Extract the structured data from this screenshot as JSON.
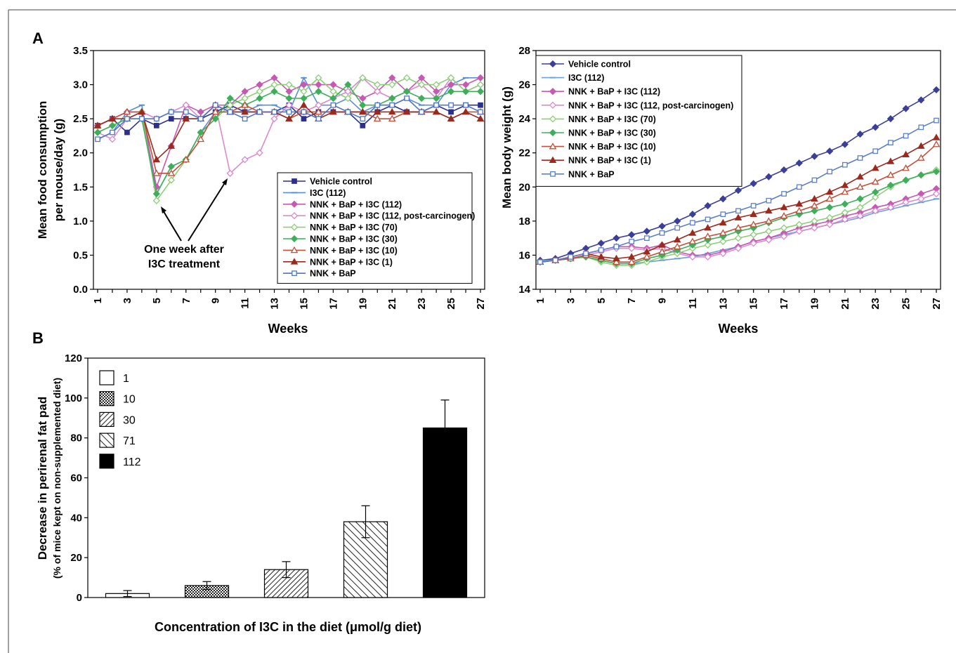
{
  "panel_labels": {
    "a": "A",
    "b": "B"
  },
  "chart_data": [
    {
      "type": "line",
      "panel": "A",
      "ylabel_line1": "Mean food consumption",
      "ylabel_line2": "per mouse/day (g)",
      "xlabel": "Weeks",
      "ylim": [
        0,
        3.5
      ],
      "yticks": [
        "0.0",
        "0.5",
        "1.0",
        "1.5",
        "2.0",
        "2.5",
        "3.0",
        "3.5"
      ],
      "xlim": [
        1,
        27
      ],
      "xticks": [
        "1",
        "3",
        "5",
        "7",
        "9",
        "11",
        "13",
        "15",
        "17",
        "19",
        "21",
        "23",
        "25",
        "27"
      ],
      "annotation_line1": "One week after",
      "annotation_line2": "I3C treatment",
      "legend_position": "bottom-right",
      "x": [
        1,
        2,
        3,
        4,
        5,
        6,
        7,
        8,
        9,
        10,
        11,
        12,
        13,
        14,
        15,
        16,
        17,
        18,
        19,
        20,
        21,
        22,
        23,
        24,
        25,
        26,
        27
      ],
      "series": [
        {
          "name": "Vehicle control",
          "color": "#2b2f8f",
          "marker": "square",
          "filled": true,
          "values": [
            2.4,
            2.5,
            2.3,
            2.5,
            2.4,
            2.5,
            2.5,
            2.5,
            2.6,
            2.7,
            2.6,
            2.6,
            2.6,
            2.7,
            2.5,
            2.6,
            2.6,
            2.6,
            2.4,
            2.6,
            2.7,
            2.6,
            2.6,
            2.7,
            2.6,
            2.7,
            2.7
          ]
        },
        {
          "name": "I3C (112)",
          "color": "#5a8fd6",
          "marker": "dash",
          "filled": true,
          "values": [
            2.2,
            2.3,
            2.6,
            2.7,
            1.4,
            1.8,
            1.9,
            2.3,
            2.6,
            2.6,
            2.6,
            2.7,
            2.7,
            2.6,
            3.1,
            2.7,
            2.7,
            2.8,
            2.6,
            2.7,
            2.7,
            2.8,
            2.7,
            2.7,
            3.0,
            3.1,
            3.1
          ]
        },
        {
          "name": "NNK + BaP + I3C (112)",
          "color": "#c65ab0",
          "marker": "diamond",
          "filled": true,
          "values": [
            2.4,
            2.5,
            2.6,
            2.6,
            1.5,
            2.1,
            2.7,
            2.6,
            2.7,
            2.7,
            2.9,
            3.0,
            3.1,
            2.9,
            3.0,
            3.0,
            3.0,
            2.9,
            2.8,
            2.9,
            3.1,
            2.9,
            3.1,
            2.9,
            3.0,
            3.0,
            3.1
          ]
        },
        {
          "name": "NNK + BaP + I3C (112, post-carcinogen)",
          "color": "#d98ad0",
          "marker": "diamond",
          "filled": false,
          "values": [
            2.3,
            2.2,
            2.5,
            2.6,
            2.5,
            2.6,
            2.7,
            2.5,
            2.7,
            1.7,
            1.9,
            2.0,
            2.5,
            2.7,
            2.6,
            2.7,
            2.8,
            2.9,
            3.1,
            2.9,
            2.8,
            2.9,
            3.0,
            2.8,
            3.1,
            2.9,
            3.0
          ]
        },
        {
          "name": "NNK + BaP + I3C (70)",
          "color": "#8ccf77",
          "marker": "diamond",
          "filled": false,
          "values": [
            2.3,
            2.4,
            2.5,
            2.6,
            1.3,
            1.6,
            1.9,
            2.3,
            2.5,
            2.7,
            2.8,
            2.9,
            3.0,
            3.0,
            2.9,
            3.1,
            2.9,
            2.8,
            3.1,
            3.0,
            3.0,
            3.1,
            3.0,
            3.0,
            3.1,
            2.9,
            3.0
          ]
        },
        {
          "name": "NNK + BaP + I3C (30)",
          "color": "#3fae5a",
          "marker": "diamond",
          "filled": true,
          "values": [
            2.3,
            2.4,
            2.5,
            2.5,
            1.4,
            1.8,
            1.9,
            2.3,
            2.5,
            2.8,
            2.7,
            2.8,
            2.9,
            2.8,
            2.8,
            2.9,
            2.8,
            3.0,
            2.7,
            2.7,
            2.8,
            2.9,
            2.8,
            2.8,
            2.9,
            2.9,
            2.9
          ]
        },
        {
          "name": "NNK + BaP + I3C (10)",
          "color": "#c0503a",
          "marker": "triangle",
          "filled": false,
          "values": [
            2.4,
            2.5,
            2.6,
            2.6,
            1.7,
            1.7,
            1.9,
            2.2,
            2.6,
            2.6,
            2.7,
            2.6,
            2.6,
            2.5,
            2.6,
            2.6,
            2.6,
            2.6,
            2.6,
            2.5,
            2.5,
            2.6,
            2.6,
            2.6,
            2.5,
            2.6,
            2.6
          ]
        },
        {
          "name": "NNK + BaP + I3C (1)",
          "color": "#9a2a1e",
          "marker": "triangle",
          "filled": true,
          "values": [
            2.4,
            2.5,
            2.5,
            2.6,
            1.9,
            2.1,
            2.5,
            2.5,
            2.7,
            2.6,
            2.6,
            2.6,
            2.6,
            2.5,
            2.7,
            2.5,
            2.6,
            2.6,
            2.6,
            2.6,
            2.6,
            2.6,
            2.6,
            2.6,
            2.5,
            2.6,
            2.5
          ]
        },
        {
          "name": "NNK + BaP",
          "color": "#4f75c4",
          "marker": "square",
          "filled": false,
          "values": [
            2.2,
            2.3,
            2.5,
            2.5,
            2.5,
            2.6,
            2.6,
            2.5,
            2.7,
            2.6,
            2.5,
            2.6,
            2.6,
            2.6,
            2.6,
            2.5,
            2.7,
            2.6,
            2.5,
            2.7,
            2.7,
            2.8,
            2.6,
            2.7,
            2.7,
            2.7,
            2.6
          ]
        }
      ]
    },
    {
      "type": "line",
      "panel": "A-right",
      "ylabel": "Mean body weight (g)",
      "xlabel": "Weeks",
      "ylim": [
        14,
        28
      ],
      "yticks": [
        "14",
        "16",
        "18",
        "20",
        "22",
        "24",
        "26",
        "28"
      ],
      "xlim": [
        1,
        27
      ],
      "xticks": [
        "1",
        "3",
        "5",
        "7",
        "9",
        "11",
        "13",
        "15",
        "17",
        "19",
        "21",
        "23",
        "25",
        "27"
      ],
      "legend_position": "top-left",
      "x": [
        1,
        2,
        3,
        4,
        5,
        6,
        7,
        8,
        9,
        10,
        11,
        12,
        13,
        14,
        15,
        16,
        17,
        18,
        19,
        20,
        21,
        22,
        23,
        24,
        25,
        26,
        27
      ],
      "series": [
        {
          "name": "Vehicle control",
          "color": "#3a3f98",
          "marker": "diamond",
          "filled": true,
          "values": [
            15.7,
            15.8,
            16.1,
            16.4,
            16.7,
            17.0,
            17.2,
            17.4,
            17.7,
            18.0,
            18.4,
            18.9,
            19.3,
            19.8,
            20.2,
            20.6,
            21.0,
            21.4,
            21.8,
            22.1,
            22.5,
            23.1,
            23.5,
            24.0,
            24.6,
            25.1,
            25.7
          ]
        },
        {
          "name": "I3C (112)",
          "color": "#6aa0dc",
          "marker": "dash",
          "filled": true,
          "values": [
            15.7,
            15.7,
            15.8,
            15.9,
            15.7,
            15.5,
            15.5,
            15.6,
            15.7,
            15.8,
            15.9,
            16.1,
            16.3,
            16.5,
            16.8,
            17.0,
            17.2,
            17.4,
            17.6,
            17.8,
            18.0,
            18.2,
            18.5,
            18.7,
            18.9,
            19.1,
            19.3
          ]
        },
        {
          "name": "NNK + BaP + I3C (112)",
          "color": "#c65ab0",
          "marker": "diamond",
          "filled": true,
          "values": [
            15.6,
            15.7,
            15.9,
            16.1,
            16.3,
            16.5,
            16.5,
            16.4,
            16.6,
            16.2,
            16.0,
            16.0,
            16.2,
            16.5,
            16.8,
            17.0,
            17.3,
            17.6,
            17.8,
            18.0,
            18.3,
            18.5,
            18.8,
            19.0,
            19.3,
            19.6,
            19.9
          ]
        },
        {
          "name": "NNK + BaP + I3C (112, post-carcinogen)",
          "color": "#d98ad0",
          "marker": "diamond",
          "filled": false,
          "values": [
            15.6,
            15.7,
            15.8,
            16.0,
            16.2,
            16.4,
            16.4,
            16.3,
            16.4,
            16.1,
            15.9,
            15.9,
            16.1,
            16.4,
            16.7,
            16.9,
            17.1,
            17.4,
            17.6,
            17.8,
            18.1,
            18.3,
            18.6,
            18.8,
            19.1,
            19.3,
            19.6
          ]
        },
        {
          "name": "NNK + BaP + I3C (70)",
          "color": "#8ccf77",
          "marker": "diamond",
          "filled": false,
          "values": [
            15.6,
            15.7,
            15.8,
            15.9,
            15.6,
            15.4,
            15.4,
            15.6,
            15.9,
            16.1,
            16.4,
            16.6,
            16.8,
            17.0,
            17.2,
            17.4,
            17.6,
            17.8,
            18.0,
            18.2,
            18.5,
            18.8,
            19.4,
            20.0,
            20.4,
            20.7,
            21.0
          ]
        },
        {
          "name": "NNK + BaP + I3C (30)",
          "color": "#3fae5a",
          "marker": "diamond",
          "filled": true,
          "values": [
            15.6,
            15.7,
            15.8,
            15.9,
            15.7,
            15.5,
            15.5,
            15.8,
            16.0,
            16.3,
            16.6,
            16.9,
            17.1,
            17.4,
            17.6,
            17.9,
            18.2,
            18.4,
            18.6,
            18.8,
            19.0,
            19.3,
            19.7,
            20.1,
            20.4,
            20.7,
            20.9
          ]
        },
        {
          "name": "NNK + BaP + I3C (10)",
          "color": "#c0503a",
          "marker": "triangle",
          "filled": false,
          "values": [
            15.6,
            15.7,
            15.8,
            16.0,
            15.8,
            15.6,
            15.6,
            15.9,
            16.2,
            16.5,
            16.8,
            17.1,
            17.3,
            17.6,
            17.8,
            18.0,
            18.3,
            18.6,
            18.9,
            19.3,
            19.7,
            20.0,
            20.3,
            20.7,
            21.1,
            21.7,
            22.5
          ]
        },
        {
          "name": "NNK + BaP + I3C (1)",
          "color": "#9a2a1e",
          "marker": "triangle",
          "filled": true,
          "values": [
            15.6,
            15.7,
            15.9,
            16.1,
            15.9,
            15.8,
            15.9,
            16.2,
            16.6,
            16.9,
            17.3,
            17.6,
            17.9,
            18.2,
            18.4,
            18.6,
            18.8,
            19.0,
            19.3,
            19.7,
            20.1,
            20.6,
            21.1,
            21.5,
            21.9,
            22.4,
            22.9
          ]
        },
        {
          "name": "NNK + BaP",
          "color": "#5b7fc8",
          "marker": "square",
          "filled": false,
          "values": [
            15.6,
            15.7,
            15.9,
            16.1,
            16.3,
            16.5,
            16.8,
            17.0,
            17.3,
            17.6,
            17.9,
            18.1,
            18.4,
            18.6,
            18.9,
            19.2,
            19.6,
            20.0,
            20.4,
            20.9,
            21.3,
            21.7,
            22.1,
            22.6,
            23.0,
            23.5,
            23.9
          ]
        }
      ]
    },
    {
      "type": "bar",
      "panel": "B",
      "ylabel_line1": "Decrease in perirenal fat pad",
      "ylabel_line2": "(% of mice kept on non-supplemented diet)",
      "xlabel": "Concentration of I3C in the diet (μmol/g diet)",
      "ylim": [
        0,
        120
      ],
      "yticks": [
        "0",
        "20",
        "40",
        "60",
        "80",
        "100",
        "120"
      ],
      "legend_position": "top-left",
      "categories": [
        "1",
        "10",
        "30",
        "71",
        "112"
      ],
      "values": [
        2,
        6,
        14,
        38,
        85
      ],
      "errors": [
        1.5,
        2,
        4,
        8,
        14
      ],
      "patterns": [
        "white",
        "crosshatch",
        "diag-dense",
        "diag-sparse",
        "black"
      ]
    }
  ]
}
